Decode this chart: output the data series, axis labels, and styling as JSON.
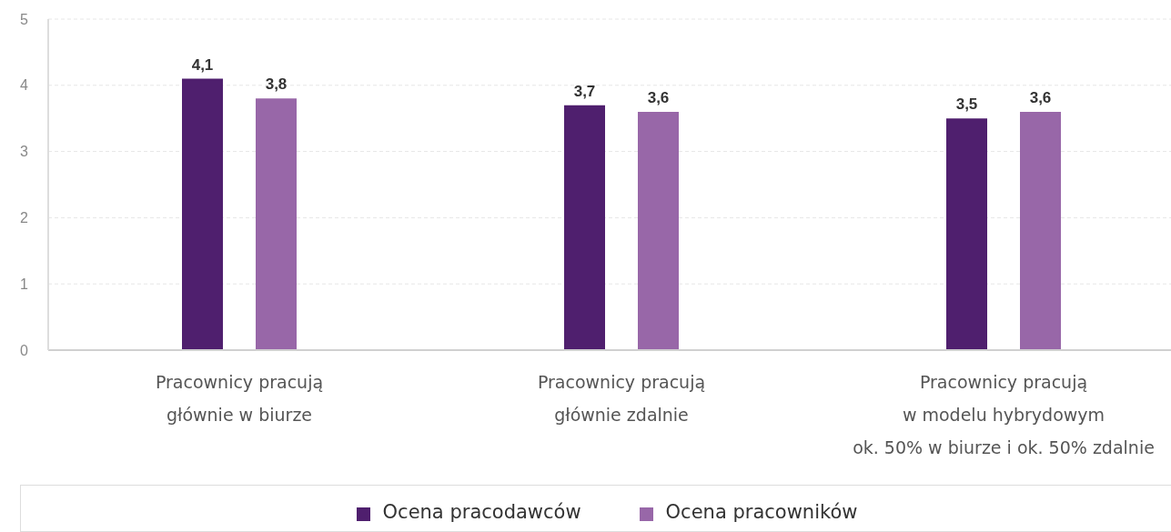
{
  "chart_data": {
    "type": "bar",
    "categories": [
      "Pracownicy pracują\ngłównie w biurze",
      "Pracownicy pracują\ngłównie zdalnie",
      "Pracownicy pracują\nw modelu hybrydowym\nok. 50% w biurze i ok. 50% zdalnie"
    ],
    "series": [
      {
        "name": "Ocena pracodawców",
        "color": "#4f1f6e",
        "values": [
          4.1,
          3.7,
          3.5
        ],
        "value_labels": [
          "4,1",
          "3,7",
          "3,5"
        ]
      },
      {
        "name": "Ocena pracowników",
        "color": "#9867a8",
        "values": [
          3.8,
          3.6,
          3.6
        ],
        "value_labels": [
          "3,8",
          "3,6",
          "3,6"
        ]
      }
    ],
    "ylim": [
      0,
      5
    ],
    "yticks": [
      0,
      1,
      2,
      3,
      4,
      5
    ],
    "grid": "y",
    "legend": "bottom"
  }
}
